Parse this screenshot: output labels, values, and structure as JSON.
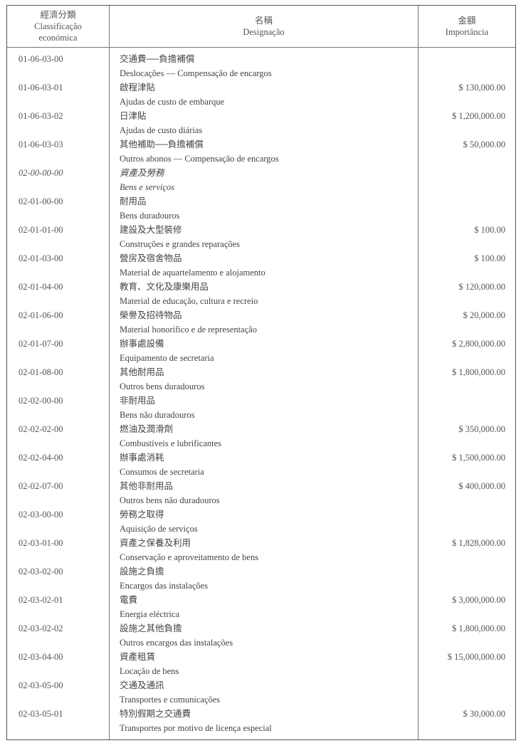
{
  "header": {
    "classification_zh": "經濟分類",
    "classification_pt_1": "Classificação",
    "classification_pt_2": "económica",
    "designation_zh": "名稱",
    "designation_pt": "Designação",
    "amount_zh": "金額",
    "amount_pt": "Importância"
  },
  "rows": [
    {
      "code": "01-06-03-00",
      "zh": "交通費──負擔補償",
      "pt": "Deslocações — Compensação de encargos",
      "amount": ""
    },
    {
      "code": "01-06-03-01",
      "zh": "啟程津貼",
      "pt": "Ajudas de custo de embarque",
      "amount": "$ 130,000.00"
    },
    {
      "code": "01-06-03-02",
      "zh": "日津貼",
      "pt": "Ajudas de custo diárias",
      "amount": "$ 1,200,000.00"
    },
    {
      "code": "01-06-03-03",
      "zh": "其他補助──負擔補償",
      "pt": "Outros abonos — Compensação de encargos",
      "amount": "$ 50,000.00"
    },
    {
      "code": "02-00-00-00",
      "zh": "資產及勞務",
      "pt": "Bens e serviços",
      "amount": "",
      "italic": true
    },
    {
      "code": "02-01-00-00",
      "zh": "耐用品",
      "pt": "Bens duradouros",
      "amount": ""
    },
    {
      "code": "02-01-01-00",
      "zh": "建設及大型裝修",
      "pt": "Construções e grandes reparações",
      "amount": "$ 100.00"
    },
    {
      "code": "02-01-03-00",
      "zh": "營房及宿舍物品",
      "pt": "Material de aquartelamento e alojamento",
      "amount": "$ 100.00"
    },
    {
      "code": "02-01-04-00",
      "zh": "教育、文化及康樂用品",
      "pt": "Material de educação, cultura e recreio",
      "amount": "$ 120,000.00"
    },
    {
      "code": "02-01-06-00",
      "zh": "榮譽及招待物品",
      "pt": "Material honorífico e de representação",
      "amount": "$ 20,000.00"
    },
    {
      "code": "02-01-07-00",
      "zh": "辦事處設備",
      "pt": "Equipamento de secretaria",
      "amount": "$ 2,800,000.00"
    },
    {
      "code": "02-01-08-00",
      "zh": "其他耐用品",
      "pt": "Outros bens duradouros",
      "amount": "$ 1,800,000.00"
    },
    {
      "code": "02-02-00-00",
      "zh": "非耐用品",
      "pt": "Bens não duradouros",
      "amount": ""
    },
    {
      "code": "02-02-02-00",
      "zh": "燃油及潤滑劑",
      "pt": "Combustíveis e lubrificantes",
      "amount": "$ 350,000.00"
    },
    {
      "code": "02-02-04-00",
      "zh": "辦事處消耗",
      "pt": "Consumos de secretaria",
      "amount": "$ 1,500,000.00"
    },
    {
      "code": "02-02-07-00",
      "zh": "其他非耐用品",
      "pt": "Outros bens não duradouros",
      "amount": "$ 400,000.00"
    },
    {
      "code": "02-03-00-00",
      "zh": "勞務之取得",
      "pt": "Aquisição de serviços",
      "amount": ""
    },
    {
      "code": "02-03-01-00",
      "zh": "資產之保養及利用",
      "pt": "Conservação e aproveitamento de bens",
      "amount": "$ 1,828,000.00"
    },
    {
      "code": "02-03-02-00",
      "zh": "設施之負擔",
      "pt": "Encargos das instalações",
      "amount": ""
    },
    {
      "code": "02-03-02-01",
      "zh": "電費",
      "pt": "Energia eléctrica",
      "amount": "$ 3,000,000.00"
    },
    {
      "code": "02-03-02-02",
      "zh": "設施之其他負擔",
      "pt": "Outros encargos das instalações",
      "amount": "$ 1,800,000.00"
    },
    {
      "code": "02-03-04-00",
      "zh": "資產租賃",
      "pt": "Locação de bens",
      "amount": "$ 15,000,000.00"
    },
    {
      "code": "02-03-05-00",
      "zh": "交通及通訊",
      "pt": "Transportes e comunicações",
      "amount": ""
    },
    {
      "code": "02-03-05-01",
      "zh": "特別假期之交通費",
      "pt": "Transportes por motivo de licença especial",
      "amount": "$ 30,000.00"
    }
  ]
}
